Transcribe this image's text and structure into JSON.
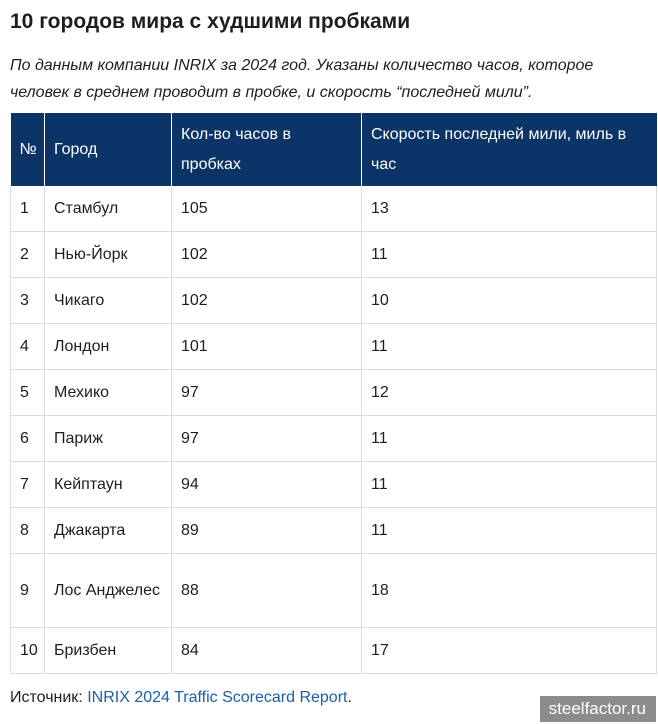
{
  "title": "10 городов мира с худшими пробками",
  "subtitle": "По данным компании INRIX за 2024 год. Указаны количество часов, которое человек в среднем проводит в пробке, и скорость “последней мили”.",
  "table": {
    "headers": [
      "№",
      "Город",
      "Кол-во часов в пробках",
      "Скорость последней мили, миль в час"
    ],
    "rows": [
      [
        "1",
        "Стамбул",
        "105",
        "13"
      ],
      [
        "2",
        "Нью-Йорк",
        "102",
        "11"
      ],
      [
        "3",
        "Чикаго",
        "102",
        "10"
      ],
      [
        "4",
        "Лондон",
        "101",
        "11"
      ],
      [
        "5",
        "Мехико",
        "97",
        "12"
      ],
      [
        "6",
        "Париж",
        "97",
        "11"
      ],
      [
        "7",
        "Кейптаун",
        "94",
        "11"
      ],
      [
        "8",
        "Джакарта",
        "89",
        "11"
      ],
      [
        "9",
        "Лос Анджелес",
        "88",
        "18"
      ],
      [
        "10",
        "Бризбен",
        "84",
        "17"
      ]
    ]
  },
  "source": {
    "label": "Источник: ",
    "link_text": "INRIX 2024 Traffic Scorecard Report",
    "suffix": "."
  },
  "watermark": "steelfactor.ru",
  "colors": {
    "header_bg": "#0c3466",
    "link": "#1b5fa8",
    "watermark_bg": "#8c8c8c"
  }
}
